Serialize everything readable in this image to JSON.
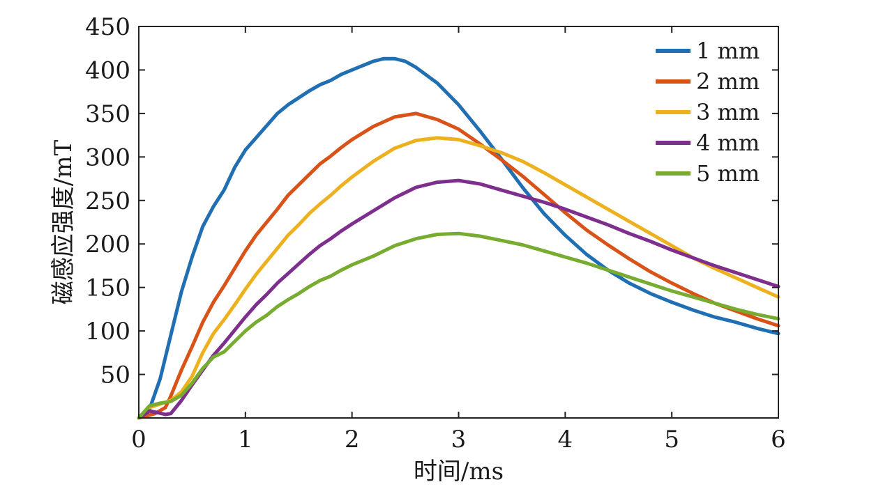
{
  "chart_data": {
    "type": "line",
    "xlabel": "时间/ms",
    "ylabel": "磁感应强度/mT",
    "xlim": [
      0,
      6
    ],
    "ylim": [
      0,
      450
    ],
    "xticks": [
      0,
      1,
      2,
      3,
      4,
      5,
      6
    ],
    "yticks": [
      50,
      100,
      150,
      200,
      250,
      300,
      350,
      400,
      450
    ],
    "grid": false,
    "legend_position": "top-right",
    "series": [
      {
        "name": "1 mm",
        "color": "#1f6fb2",
        "points": [
          [
            0,
            0
          ],
          [
            0.1,
            10
          ],
          [
            0.2,
            45
          ],
          [
            0.3,
            95
          ],
          [
            0.4,
            145
          ],
          [
            0.5,
            185
          ],
          [
            0.6,
            220
          ],
          [
            0.7,
            243
          ],
          [
            0.8,
            262
          ],
          [
            0.9,
            288
          ],
          [
            1.0,
            308
          ],
          [
            1.1,
            322
          ],
          [
            1.2,
            336
          ],
          [
            1.3,
            350
          ],
          [
            1.4,
            360
          ],
          [
            1.5,
            368
          ],
          [
            1.6,
            376
          ],
          [
            1.7,
            383
          ],
          [
            1.8,
            388
          ],
          [
            1.9,
            395
          ],
          [
            2.0,
            400
          ],
          [
            2.1,
            405
          ],
          [
            2.2,
            410
          ],
          [
            2.3,
            413
          ],
          [
            2.4,
            413
          ],
          [
            2.5,
            410
          ],
          [
            2.6,
            403
          ],
          [
            2.8,
            385
          ],
          [
            3.0,
            360
          ],
          [
            3.2,
            330
          ],
          [
            3.4,
            298
          ],
          [
            3.6,
            265
          ],
          [
            3.8,
            235
          ],
          [
            4.0,
            210
          ],
          [
            4.2,
            188
          ],
          [
            4.4,
            170
          ],
          [
            4.6,
            155
          ],
          [
            4.8,
            143
          ],
          [
            5.0,
            133
          ],
          [
            5.2,
            124
          ],
          [
            5.4,
            116
          ],
          [
            5.6,
            110
          ],
          [
            5.8,
            103
          ],
          [
            6.0,
            97
          ]
        ]
      },
      {
        "name": "2 mm",
        "color": "#d95319",
        "points": [
          [
            0,
            0
          ],
          [
            0.15,
            5
          ],
          [
            0.25,
            12
          ],
          [
            0.3,
            25
          ],
          [
            0.4,
            55
          ],
          [
            0.5,
            82
          ],
          [
            0.6,
            110
          ],
          [
            0.7,
            133
          ],
          [
            0.8,
            152
          ],
          [
            0.9,
            172
          ],
          [
            1.0,
            192
          ],
          [
            1.1,
            210
          ],
          [
            1.2,
            225
          ],
          [
            1.3,
            240
          ],
          [
            1.4,
            256
          ],
          [
            1.5,
            268
          ],
          [
            1.6,
            280
          ],
          [
            1.7,
            292
          ],
          [
            1.8,
            301
          ],
          [
            1.9,
            311
          ],
          [
            2.0,
            320
          ],
          [
            2.2,
            335
          ],
          [
            2.4,
            346
          ],
          [
            2.6,
            350
          ],
          [
            2.8,
            343
          ],
          [
            3.0,
            332
          ],
          [
            3.2,
            315
          ],
          [
            3.4,
            297
          ],
          [
            3.6,
            278
          ],
          [
            3.8,
            257
          ],
          [
            4.0,
            236
          ],
          [
            4.2,
            216
          ],
          [
            4.4,
            199
          ],
          [
            4.6,
            183
          ],
          [
            4.8,
            168
          ],
          [
            5.0,
            155
          ],
          [
            5.2,
            143
          ],
          [
            5.4,
            132
          ],
          [
            5.6,
            123
          ],
          [
            5.8,
            114
          ],
          [
            6.0,
            106
          ]
        ]
      },
      {
        "name": "3 mm",
        "color": "#edb120",
        "points": [
          [
            0,
            0
          ],
          [
            0.1,
            12
          ],
          [
            0.2,
            16
          ],
          [
            0.3,
            20
          ],
          [
            0.4,
            30
          ],
          [
            0.5,
            48
          ],
          [
            0.6,
            75
          ],
          [
            0.7,
            97
          ],
          [
            0.8,
            113
          ],
          [
            0.9,
            130
          ],
          [
            1.0,
            148
          ],
          [
            1.1,
            165
          ],
          [
            1.2,
            180
          ],
          [
            1.3,
            195
          ],
          [
            1.4,
            210
          ],
          [
            1.5,
            222
          ],
          [
            1.6,
            235
          ],
          [
            1.7,
            246
          ],
          [
            1.8,
            256
          ],
          [
            1.9,
            267
          ],
          [
            2.0,
            277
          ],
          [
            2.2,
            295
          ],
          [
            2.4,
            310
          ],
          [
            2.6,
            319
          ],
          [
            2.8,
            322
          ],
          [
            3.0,
            320
          ],
          [
            3.2,
            313
          ],
          [
            3.4,
            305
          ],
          [
            3.6,
            295
          ],
          [
            3.8,
            282
          ],
          [
            4.0,
            268
          ],
          [
            4.2,
            254
          ],
          [
            4.4,
            240
          ],
          [
            4.6,
            226
          ],
          [
            4.8,
            212
          ],
          [
            5.0,
            198
          ],
          [
            5.2,
            184
          ],
          [
            5.4,
            172
          ],
          [
            5.6,
            161
          ],
          [
            5.8,
            150
          ],
          [
            6.0,
            139
          ]
        ]
      },
      {
        "name": "4 mm",
        "color": "#7e2f8e",
        "points": [
          [
            0,
            0
          ],
          [
            0.1,
            8
          ],
          [
            0.18,
            6
          ],
          [
            0.25,
            4
          ],
          [
            0.3,
            5
          ],
          [
            0.4,
            20
          ],
          [
            0.5,
            38
          ],
          [
            0.6,
            55
          ],
          [
            0.7,
            72
          ],
          [
            0.8,
            86
          ],
          [
            0.9,
            101
          ],
          [
            1.0,
            116
          ],
          [
            1.1,
            130
          ],
          [
            1.2,
            142
          ],
          [
            1.3,
            155
          ],
          [
            1.4,
            166
          ],
          [
            1.5,
            177
          ],
          [
            1.6,
            188
          ],
          [
            1.7,
            198
          ],
          [
            1.8,
            206
          ],
          [
            1.9,
            215
          ],
          [
            2.0,
            223
          ],
          [
            2.2,
            238
          ],
          [
            2.4,
            253
          ],
          [
            2.6,
            265
          ],
          [
            2.8,
            271
          ],
          [
            3.0,
            273
          ],
          [
            3.2,
            269
          ],
          [
            3.4,
            262
          ],
          [
            3.6,
            255
          ],
          [
            3.8,
            248
          ],
          [
            4.0,
            240
          ],
          [
            4.2,
            231
          ],
          [
            4.4,
            222
          ],
          [
            4.6,
            212
          ],
          [
            4.8,
            203
          ],
          [
            5.0,
            193
          ],
          [
            5.2,
            184
          ],
          [
            5.4,
            175
          ],
          [
            5.6,
            167
          ],
          [
            5.8,
            159
          ],
          [
            6.0,
            151
          ]
        ]
      },
      {
        "name": "5 mm",
        "color": "#77ac30",
        "points": [
          [
            0,
            0
          ],
          [
            0.1,
            14
          ],
          [
            0.2,
            17
          ],
          [
            0.3,
            19
          ],
          [
            0.4,
            26
          ],
          [
            0.5,
            40
          ],
          [
            0.6,
            57
          ],
          [
            0.7,
            70
          ],
          [
            0.8,
            76
          ],
          [
            0.9,
            88
          ],
          [
            1.0,
            100
          ],
          [
            1.1,
            110
          ],
          [
            1.2,
            118
          ],
          [
            1.3,
            128
          ],
          [
            1.4,
            136
          ],
          [
            1.5,
            143
          ],
          [
            1.6,
            151
          ],
          [
            1.7,
            158
          ],
          [
            1.8,
            163
          ],
          [
            1.9,
            170
          ],
          [
            2.0,
            176
          ],
          [
            2.2,
            186
          ],
          [
            2.4,
            198
          ],
          [
            2.6,
            206
          ],
          [
            2.8,
            211
          ],
          [
            3.0,
            212
          ],
          [
            3.2,
            209
          ],
          [
            3.4,
            204
          ],
          [
            3.6,
            199
          ],
          [
            3.8,
            192
          ],
          [
            4.0,
            185
          ],
          [
            4.2,
            178
          ],
          [
            4.4,
            170
          ],
          [
            4.6,
            162
          ],
          [
            4.8,
            154
          ],
          [
            5.0,
            146
          ],
          [
            5.2,
            139
          ],
          [
            5.4,
            132
          ],
          [
            5.6,
            125
          ],
          [
            5.8,
            119
          ],
          [
            6.0,
            114
          ]
        ]
      }
    ]
  }
}
